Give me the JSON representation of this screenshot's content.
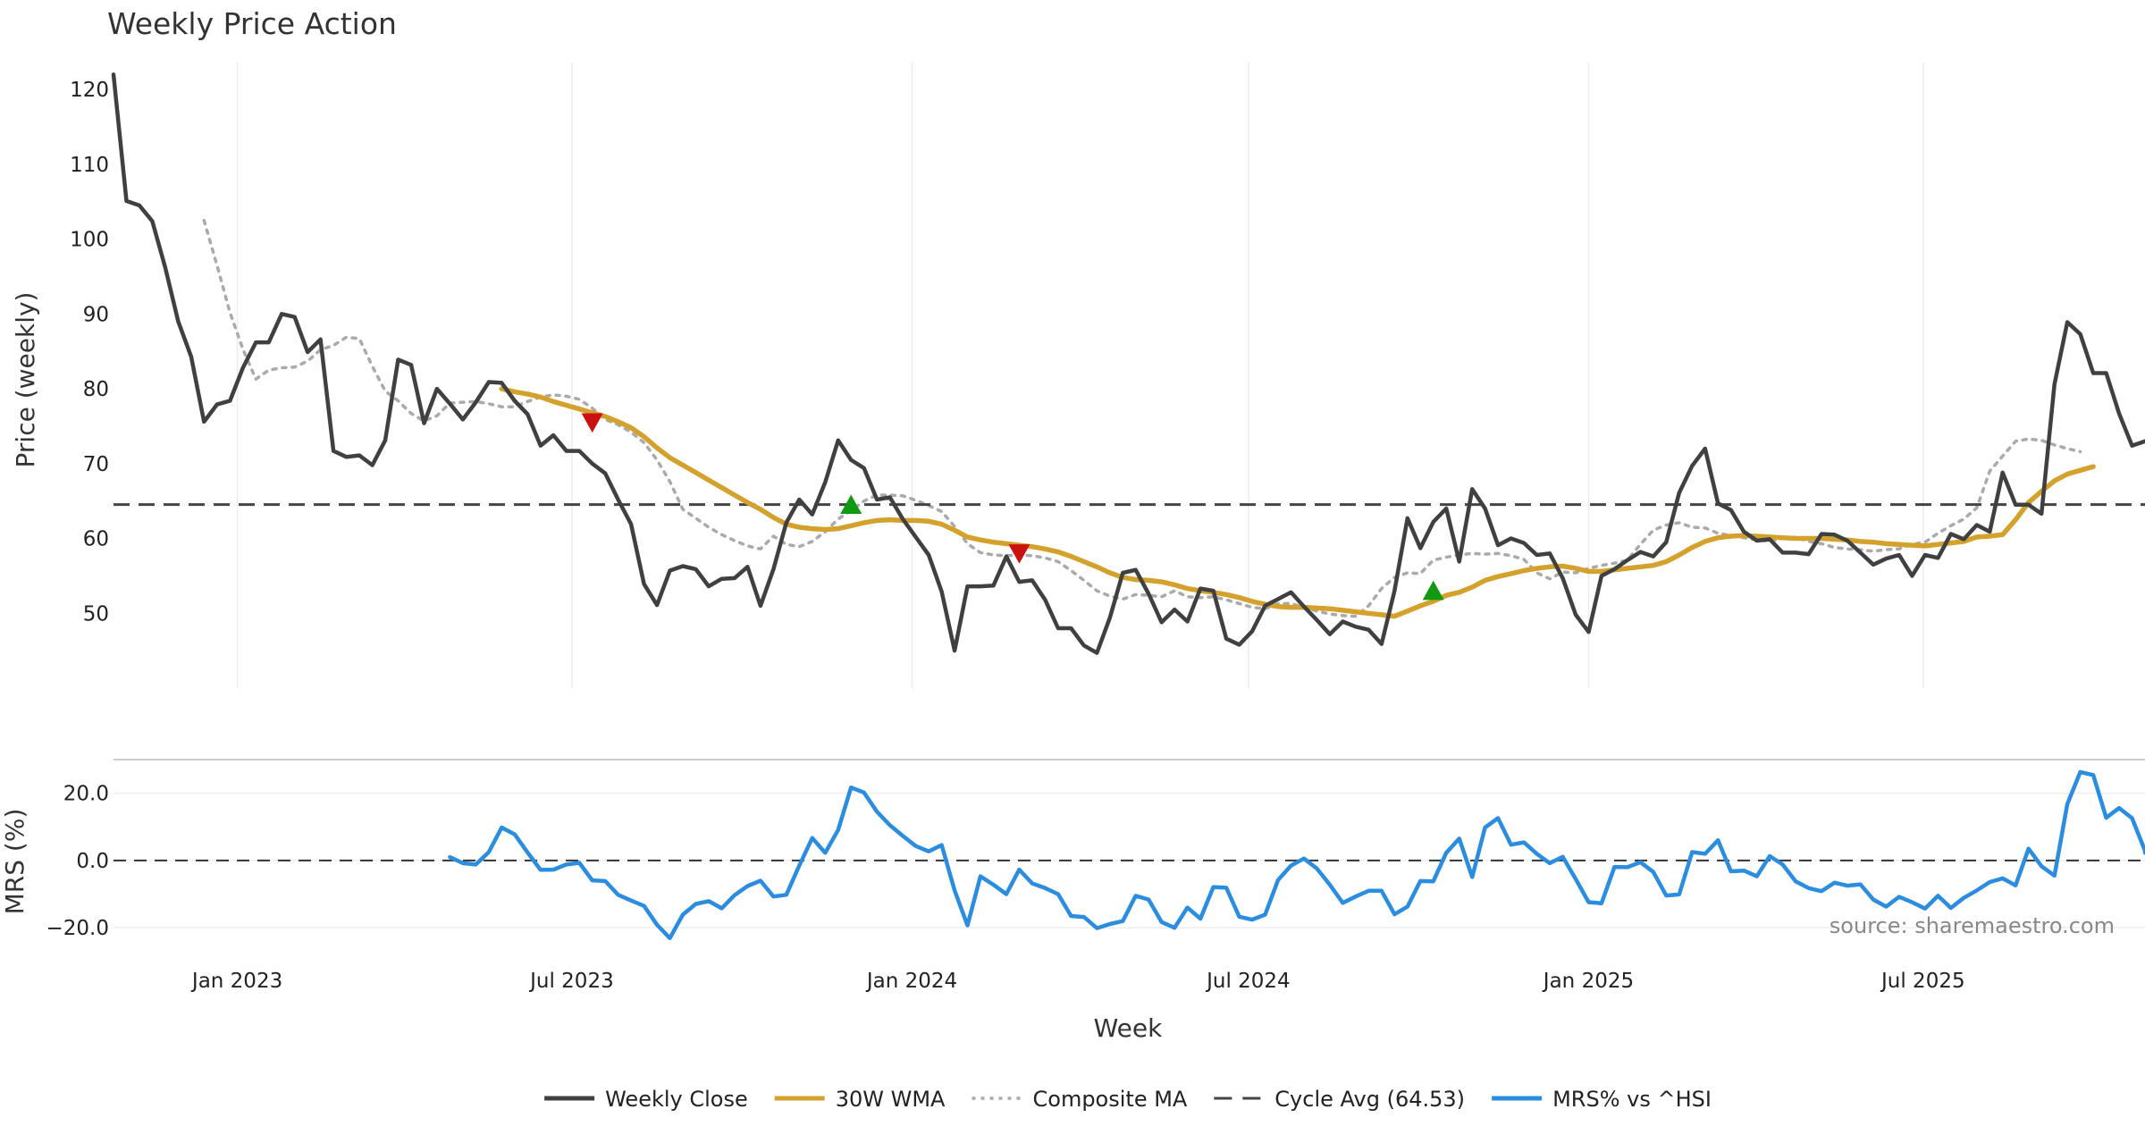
{
  "chart_data": {
    "type": "line",
    "title": "Weekly Price Action",
    "xlabel": "Week",
    "x_ticks": [
      "Jan 2023",
      "Jul 2023",
      "Jan 2024",
      "Jul 2024",
      "Jan 2025",
      "Jul 2025"
    ],
    "x_range": [
      "2022-10-26",
      "2025-10-29"
    ],
    "source": "source: sharemaestro.com",
    "price_panel": {
      "ylabel": "Price (weekly)",
      "y_ticks": [
        50,
        60,
        70,
        80,
        90,
        100,
        110,
        120
      ],
      "ylim": [
        40,
        123
      ],
      "cycle_avg": 64.53,
      "series": [
        {
          "name": "Weekly Close",
          "color": "#404040",
          "style": "solid",
          "start_date": "2022-10-26",
          "values": [
            122.0,
            105.1,
            104.5,
            102.4,
            96.2,
            89.0,
            84.3,
            75.6,
            77.9,
            78.4,
            82.8,
            86.2,
            86.2,
            90.0,
            89.6,
            84.9,
            86.6,
            71.7,
            70.9,
            71.1,
            69.8,
            73.1,
            83.9,
            83.2,
            75.4,
            80.0,
            78.0,
            75.9,
            78.2,
            80.9,
            80.8,
            78.4,
            76.6,
            72.4,
            73.8,
            71.7,
            71.7,
            70.0,
            68.7,
            65.2,
            61.9,
            53.9,
            51.1,
            55.7,
            56.3,
            55.9,
            53.6,
            54.6,
            54.7,
            56.2,
            51.0,
            55.9,
            62.1,
            65.2,
            63.2,
            67.5,
            73.1,
            70.5,
            69.4,
            65.2,
            65.5,
            62.6,
            60.2,
            57.8,
            52.9,
            45.0,
            53.6,
            53.6,
            53.7,
            57.6,
            54.2,
            54.4,
            51.8,
            48.0,
            48.0,
            45.7,
            44.7,
            49.4,
            55.4,
            55.8,
            52.6,
            48.8,
            50.5,
            48.9,
            53.3,
            53.0,
            46.6,
            45.8,
            47.6,
            51.0,
            51.9,
            52.8,
            50.9,
            49.1,
            47.2,
            48.9,
            48.2,
            47.8,
            45.9,
            53.0,
            62.7,
            58.7,
            62.2,
            64.0,
            56.9,
            66.6,
            64.0,
            59.1,
            60.0,
            59.4,
            57.8,
            58.0,
            54.7,
            49.8,
            47.5,
            55.0,
            55.9,
            57.1,
            58.2,
            57.6,
            59.5,
            66.1,
            69.7,
            72.0,
            64.7,
            63.8,
            60.9,
            59.7,
            59.9,
            58.1,
            58.1,
            57.9,
            60.6,
            60.5,
            59.7,
            58.1,
            56.5,
            57.3,
            57.8,
            55.0,
            57.8,
            57.4,
            60.6,
            59.9,
            61.8,
            60.9,
            68.8,
            64.5,
            64.5,
            63.3,
            80.6,
            88.9,
            87.3,
            82.1,
            82.1,
            76.7,
            72.4,
            73.0
          ]
        },
        {
          "name": "30W WMA",
          "color": "#D4A22C",
          "style": "solid",
          "start_date": "2023-05-24",
          "values": [
            80.0,
            79.6,
            79.3,
            78.9,
            78.3,
            77.8,
            77.3,
            76.8,
            76.3,
            75.6,
            74.8,
            73.6,
            72.1,
            70.8,
            69.8,
            68.8,
            67.8,
            66.8,
            65.8,
            64.8,
            63.9,
            62.8,
            61.9,
            61.5,
            61.3,
            61.2,
            61.3,
            61.7,
            62.1,
            62.4,
            62.5,
            62.4,
            62.4,
            62.3,
            61.9,
            61.1,
            60.2,
            59.8,
            59.5,
            59.3,
            59.1,
            58.9,
            58.6,
            58.2,
            57.6,
            56.9,
            56.2,
            55.4,
            54.8,
            54.5,
            54.4,
            54.2,
            53.8,
            53.3,
            53.0,
            52.8,
            52.5,
            52.1,
            51.6,
            51.2,
            50.9,
            50.8,
            50.8,
            50.7,
            50.6,
            50.4,
            50.2,
            50.0,
            49.8,
            49.6,
            50.3,
            51.0,
            51.6,
            52.4,
            52.8,
            53.5,
            54.4,
            54.9,
            55.3,
            55.7,
            56.0,
            56.2,
            56.3,
            56.0,
            55.6,
            55.6,
            55.8,
            56.0,
            56.2,
            56.4,
            56.9,
            57.8,
            58.8,
            59.6,
            60.1,
            60.3,
            60.4,
            60.3,
            60.2,
            60.1,
            60.0,
            60.0,
            60.0,
            59.9,
            59.8,
            59.6,
            59.5,
            59.3,
            59.2,
            59.1,
            59.0,
            59.2,
            59.4,
            59.6,
            60.2,
            60.3,
            60.5,
            62.5,
            64.8,
            66.3,
            67.7,
            68.6,
            69.1,
            69.6
          ]
        },
        {
          "name": "Composite MA",
          "color": "#AAAAAA",
          "style": "dotted",
          "start_date": "2022-12-14",
          "values": [
            102.5,
            96.5,
            90.2,
            85.3,
            81.3,
            82.5,
            82.8,
            82.9,
            83.7,
            85.2,
            85.8,
            86.9,
            86.7,
            83.0,
            79.7,
            78.4,
            76.7,
            75.7,
            76.4,
            78.1,
            78.2,
            78.3,
            78.0,
            77.6,
            77.6,
            78.3,
            78.9,
            79.2,
            79.0,
            78.6,
            77.4,
            75.9,
            75.2,
            74.2,
            72.8,
            70.5,
            67.6,
            63.9,
            62.7,
            61.5,
            60.5,
            59.7,
            59.0,
            58.6,
            60.3,
            59.2,
            58.9,
            59.6,
            60.9,
            62.6,
            63.7,
            65.0,
            65.8,
            65.8,
            65.7,
            65.1,
            64.4,
            63.6,
            61.6,
            59.3,
            58.1,
            57.8,
            57.7,
            57.8,
            57.7,
            57.4,
            56.9,
            55.7,
            54.4,
            53.0,
            52.3,
            51.9,
            52.5,
            52.4,
            52.2,
            53.0,
            52.2,
            52.1,
            52.2,
            51.8,
            51.3,
            50.8,
            50.6,
            51.3,
            51.3,
            50.8,
            50.3,
            49.9,
            49.7,
            49.6,
            51.0,
            53.3,
            54.8,
            55.4,
            55.3,
            57.1,
            57.5,
            57.8,
            58.0,
            57.9,
            58.0,
            57.7,
            57.2,
            55.4,
            54.6,
            55.5,
            55.4,
            56.0,
            56.4,
            56.7,
            57.1,
            59.2,
            61.1,
            61.8,
            62.1,
            61.5,
            61.4,
            60.7,
            60.4,
            60.1,
            59.8,
            59.6,
            60.0,
            60.2,
            59.6,
            59.3,
            58.8,
            58.6,
            58.5,
            58.3,
            58.5,
            58.6,
            59.2,
            59.5,
            60.7,
            61.7,
            62.6,
            64.1,
            69.0,
            71.0,
            73.0,
            73.3,
            73.1,
            72.5,
            72.0,
            71.6
          ]
        },
        {
          "name": "Cycle Avg (64.53)",
          "color": "#444444",
          "style": "dashed",
          "value": 64.53
        }
      ],
      "markers": [
        {
          "type": "sell",
          "date": "2023-07-12",
          "value": 75.5,
          "color": "#CC1111"
        },
        {
          "type": "buy",
          "date": "2023-11-29",
          "value": 64.5,
          "color": "#119911"
        },
        {
          "type": "sell",
          "date": "2024-02-28",
          "value": 58.0,
          "color": "#CC1111"
        },
        {
          "type": "buy",
          "date": "2024-10-09",
          "value": 53.0,
          "color": "#119911"
        }
      ]
    },
    "mrs_panel": {
      "ylabel": "MRS (%)",
      "y_ticks": [
        "−20.0",
        "0.0",
        "20.0"
      ],
      "y_tick_values": [
        -20,
        0,
        20
      ],
      "ylim": [
        -25,
        30
      ],
      "series": [
        {
          "name": "MRS% vs ^HSI",
          "color": "#2B8DE0",
          "style": "solid",
          "start_date": "2023-04-26",
          "values": [
            1.0,
            -0.8,
            -1.2,
            2.5,
            9.8,
            7.8,
            2.4,
            -2.8,
            -2.7,
            -1.2,
            -0.7,
            -5.9,
            -6.1,
            -10.2,
            -11.9,
            -13.5,
            -19.1,
            -23.1,
            -16.1,
            -12.9,
            -12.1,
            -14.2,
            -10.3,
            -7.6,
            -6.0,
            -10.7,
            -10.2,
            -1.5,
            6.7,
            2.3,
            9.1,
            21.7,
            20.2,
            14.5,
            10.5,
            7.3,
            4.3,
            2.7,
            4.6,
            -8.9,
            -19.3,
            -4.7,
            -7.2,
            -10.0,
            -2.7,
            -6.8,
            -8.2,
            -10.0,
            -16.5,
            -16.8,
            -20.1,
            -18.9,
            -18.0,
            -10.5,
            -11.6,
            -18.3,
            -20.0,
            -14.0,
            -17.3,
            -7.9,
            -8.1,
            -16.7,
            -17.6,
            -16.1,
            -5.8,
            -1.5,
            0.6,
            -2.4,
            -7.2,
            -12.6,
            -10.7,
            -9.0,
            -9.0,
            -16.0,
            -13.7,
            -6.1,
            -6.2,
            2.3,
            6.5,
            -4.9,
            9.8,
            12.6,
            4.7,
            5.4,
            2.0,
            -0.8,
            1.1,
            -5.5,
            -12.4,
            -12.7,
            -1.9,
            -2.0,
            -0.5,
            -3.4,
            -10.4,
            -10.1,
            2.5,
            2.0,
            6.0,
            -3.2,
            -3.0,
            -4.7,
            1.3,
            -1.2,
            -6.2,
            -8.2,
            -9.1,
            -6.6,
            -7.5,
            -7.1,
            -11.6,
            -13.7,
            -10.8,
            -12.4,
            -14.3,
            -10.5,
            -14.1,
            -11.1,
            -8.9,
            -6.4,
            -5.3,
            -7.4,
            3.5,
            -1.7,
            -4.5,
            16.8,
            26.3,
            25.4,
            12.7,
            15.6,
            12.6,
            2.9,
            2.3
          ]
        }
      ]
    },
    "legend": {
      "placement": "bottom-center",
      "entries": [
        "Weekly Close",
        "30W WMA",
        "Composite MA",
        "Cycle Avg (64.53)",
        "MRS% vs ^HSI"
      ]
    }
  }
}
